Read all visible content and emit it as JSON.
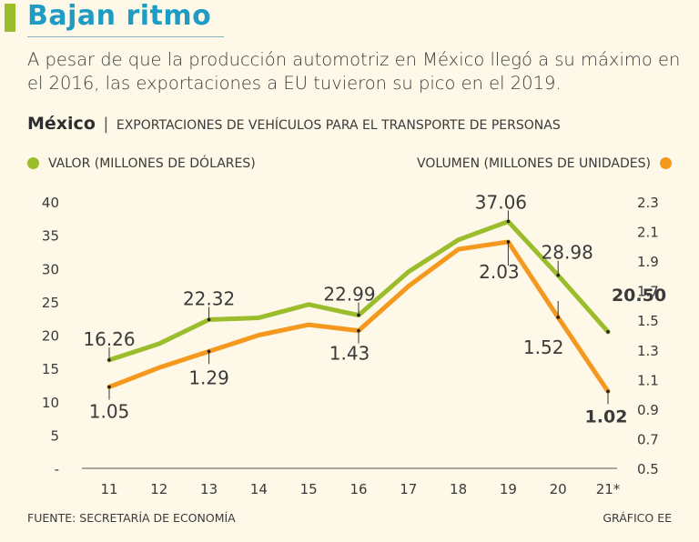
{
  "title": "Bajan ritmo",
  "subtitle": "A pesar de que la producción automotriz en México llegó a su máximo en el 2016, las exportaciones a EU tuvieron su pico en el 2019.",
  "section": {
    "country": "México",
    "separator": "|",
    "description": "EXPORTACIONES DE VEHÍCULOS PARA EL TRANSPORTE DE PERSONAS"
  },
  "legend": {
    "left_label": "VALOR (MILLONES DE DÓLARES)",
    "right_label": "VOLUMEN (MILLONES DE UNIDADES)"
  },
  "colors": {
    "valor": "#9bbd2c",
    "volumen": "#f4981e",
    "title": "#1f9cc4"
  },
  "footer": {
    "source": "FUENTE: SECRETARÍA DE ECONOMÍA",
    "credit": "GRÁFICO EE"
  },
  "chart_data": {
    "type": "line",
    "categories": [
      "11",
      "12",
      "13",
      "14",
      "15",
      "16",
      "17",
      "18",
      "19",
      "20",
      "21*"
    ],
    "series": [
      {
        "name": "VALOR (MILLONES DE DÓLARES)",
        "axis": "left",
        "values": [
          16.26,
          18.7,
          22.32,
          22.6,
          24.6,
          22.99,
          29.5,
          34.3,
          37.06,
          28.98,
          20.5
        ]
      },
      {
        "name": "VOLUMEN (MILLONES DE UNIDADES)",
        "axis": "right",
        "values": [
          1.05,
          1.18,
          1.29,
          1.4,
          1.47,
          1.43,
          1.73,
          1.98,
          2.03,
          1.52,
          1.02
        ]
      }
    ],
    "left_axis": {
      "ylim": [
        0,
        40
      ],
      "ticks": [
        "-",
        "5",
        "10",
        "15",
        "20",
        "25",
        "30",
        "35",
        "40"
      ]
    },
    "right_axis": {
      "ylim": [
        0.5,
        2.3
      ],
      "ticks": [
        "0.5",
        "0.7",
        "0.9",
        "1.1",
        "1.3",
        "1.5",
        "1.7",
        "1.9",
        "2.1",
        "2.3"
      ]
    },
    "annotations": [
      {
        "series": 0,
        "index": 0,
        "text": "16.26",
        "bold": false
      },
      {
        "series": 0,
        "index": 2,
        "text": "22.32",
        "bold": false
      },
      {
        "series": 0,
        "index": 5,
        "text": "22.99",
        "bold": false
      },
      {
        "series": 0,
        "index": 8,
        "text": "37.06",
        "bold": false
      },
      {
        "series": 0,
        "index": 9,
        "text": "28.98",
        "bold": false
      },
      {
        "series": 0,
        "index": 10,
        "text": "20.50",
        "bold": true
      },
      {
        "series": 1,
        "index": 0,
        "text": "1.05",
        "bold": false
      },
      {
        "series": 1,
        "index": 2,
        "text": "1.29",
        "bold": false
      },
      {
        "series": 1,
        "index": 5,
        "text": "1.43",
        "bold": false
      },
      {
        "series": 1,
        "index": 8,
        "text": "2.03",
        "bold": false
      },
      {
        "series": 1,
        "index": 9,
        "text": "1.52",
        "bold": false
      },
      {
        "series": 1,
        "index": 10,
        "text": "1.02",
        "bold": true
      }
    ]
  }
}
